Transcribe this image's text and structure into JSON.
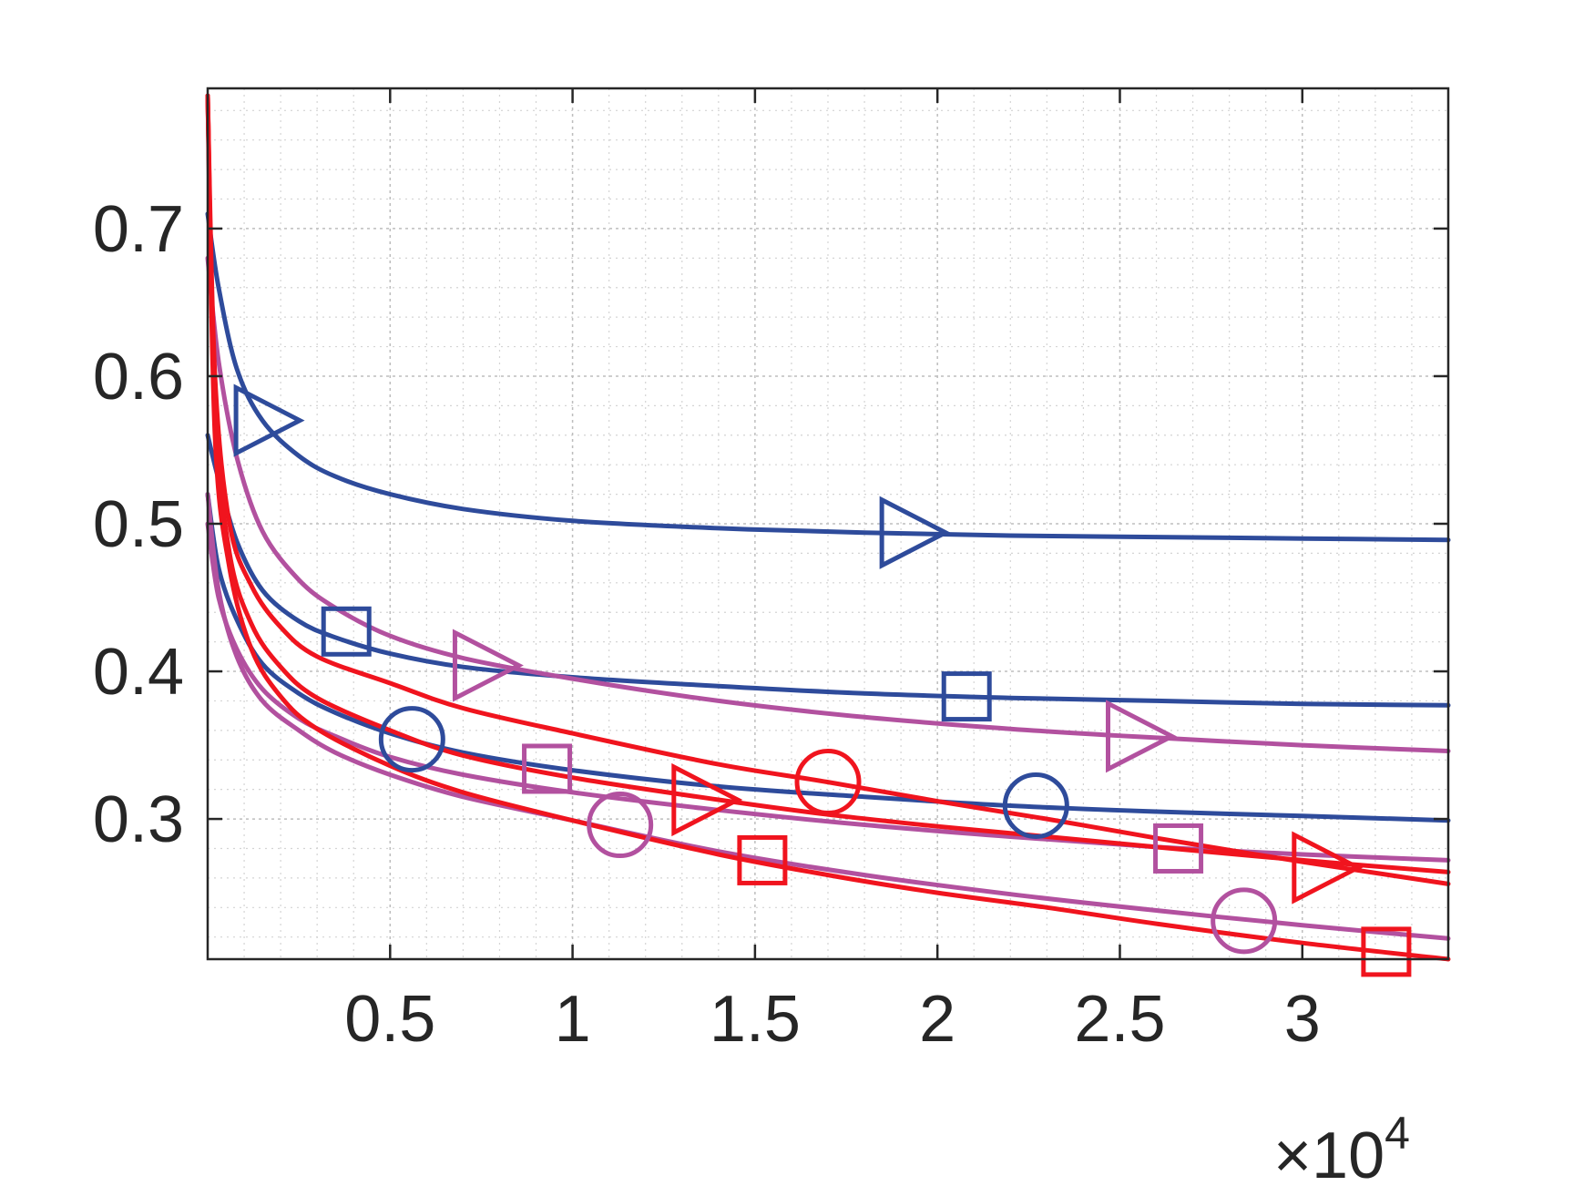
{
  "chart_data": {
    "type": "line",
    "title": "",
    "xlabel": "",
    "ylabel": "",
    "xlim": [
      0,
      34000
    ],
    "ylim": [
      0.205,
      0.795
    ],
    "x_exponent_label": {
      "prefix": "×10",
      "power": "4"
    },
    "x_ticks": [
      {
        "value": 5000,
        "label": "0.5"
      },
      {
        "value": 10000,
        "label": "1"
      },
      {
        "value": 15000,
        "label": "1.5"
      },
      {
        "value": 20000,
        "label": "2"
      },
      {
        "value": 25000,
        "label": "2.5"
      },
      {
        "value": 30000,
        "label": "3"
      }
    ],
    "y_ticks": [
      {
        "value": 0.3,
        "label": "0.3"
      },
      {
        "value": 0.4,
        "label": "0.4"
      },
      {
        "value": 0.5,
        "label": "0.5"
      },
      {
        "value": 0.6,
        "label": "0.6"
      },
      {
        "value": 0.7,
        "label": "0.7"
      }
    ],
    "grid": true,
    "minor_grid": true,
    "legend": "none",
    "series": [
      {
        "color": "#2E4B9B",
        "marker": "triangle-right",
        "x": [
          0,
          300,
          800,
          1500,
          2500,
          3500,
          5000,
          7000,
          10000,
          14000,
          18000,
          22000,
          26000,
          30000,
          34000
        ],
        "y": [
          0.71,
          0.66,
          0.605,
          0.57,
          0.546,
          0.532,
          0.52,
          0.51,
          0.502,
          0.497,
          0.494,
          0.492,
          0.491,
          0.49,
          0.489
        ],
        "markers": [
          [
            1600,
            0.57
          ],
          [
            19300,
            0.494
          ]
        ]
      },
      {
        "color": "#2E4B9B",
        "marker": "square",
        "x": [
          0,
          300,
          800,
          1500,
          2500,
          3500,
          5000,
          7000,
          10000,
          14000,
          18000,
          22000,
          26000,
          30000,
          34000
        ],
        "y": [
          0.56,
          0.53,
          0.488,
          0.455,
          0.434,
          0.423,
          0.412,
          0.403,
          0.396,
          0.39,
          0.385,
          0.382,
          0.38,
          0.378,
          0.377
        ],
        "markers": [
          [
            3800,
            0.427
          ],
          [
            20800,
            0.383
          ]
        ]
      },
      {
        "color": "#2E4B9B",
        "marker": "circle",
        "x": [
          0,
          300,
          800,
          1500,
          2500,
          3500,
          5000,
          7000,
          10000,
          14000,
          18000,
          22000,
          26000,
          30000,
          34000
        ],
        "y": [
          0.52,
          0.47,
          0.435,
          0.405,
          0.385,
          0.372,
          0.358,
          0.345,
          0.333,
          0.322,
          0.315,
          0.309,
          0.305,
          0.302,
          0.299
        ],
        "markers": [
          [
            5600,
            0.354
          ],
          [
            22700,
            0.309
          ]
        ]
      },
      {
        "color": "#B2519F",
        "marker": "triangle-right",
        "x": [
          0,
          300,
          800,
          1500,
          2500,
          3500,
          5000,
          7000,
          10000,
          14000,
          18000,
          22000,
          26000,
          30000,
          34000
        ],
        "y": [
          0.68,
          0.61,
          0.545,
          0.495,
          0.462,
          0.443,
          0.424,
          0.409,
          0.395,
          0.38,
          0.369,
          0.361,
          0.355,
          0.35,
          0.346
        ],
        "markers": [
          [
            7600,
            0.404
          ],
          [
            25500,
            0.356
          ]
        ]
      },
      {
        "color": "#B2519F",
        "marker": "square",
        "x": [
          0,
          300,
          800,
          1500,
          2500,
          3500,
          5000,
          7000,
          10000,
          14000,
          18000,
          22000,
          26000,
          30000,
          34000
        ],
        "y": [
          0.5,
          0.45,
          0.415,
          0.388,
          0.368,
          0.356,
          0.342,
          0.33,
          0.318,
          0.306,
          0.296,
          0.288,
          0.281,
          0.276,
          0.272
        ],
        "markers": [
          [
            9300,
            0.334
          ],
          [
            26600,
            0.28
          ]
        ]
      },
      {
        "color": "#B2519F",
        "marker": "circle",
        "x": [
          0,
          300,
          800,
          1500,
          2500,
          3500,
          5000,
          7000,
          10000,
          14000,
          18000,
          22000,
          26000,
          30000,
          34000
        ],
        "y": [
          0.52,
          0.455,
          0.41,
          0.38,
          0.36,
          0.345,
          0.33,
          0.315,
          0.299,
          0.278,
          0.262,
          0.249,
          0.238,
          0.228,
          0.219
        ],
        "markers": [
          [
            11300,
            0.296
          ],
          [
            28400,
            0.231
          ]
        ]
      },
      {
        "color": "#F0141E",
        "marker": "triangle-right",
        "x": [
          0,
          200,
          600,
          1200,
          2000,
          3000,
          5000,
          7000,
          10000,
          14000,
          17000,
          20000,
          23000,
          26000,
          30000,
          34000
        ],
        "y": [
          0.79,
          0.6,
          0.5,
          0.458,
          0.43,
          0.41,
          0.392,
          0.375,
          0.358,
          0.337,
          0.325,
          0.312,
          0.3,
          0.287,
          0.271,
          0.256
        ],
        "markers": [
          [
            13600,
            0.313
          ],
          [
            30600,
            0.267
          ]
        ]
      },
      {
        "color": "#F0141E",
        "marker": "circle",
        "x": [
          0,
          200,
          600,
          1200,
          2000,
          3000,
          5000,
          7000,
          10000,
          14000,
          17000,
          20000,
          23000,
          26000,
          30000,
          34000
        ],
        "y": [
          0.79,
          0.58,
          0.48,
          0.432,
          0.403,
          0.382,
          0.36,
          0.343,
          0.328,
          0.313,
          0.303,
          0.295,
          0.288,
          0.281,
          0.272,
          0.264
        ],
        "markers": [
          [
            17000,
            0.325
          ]
        ]
      },
      {
        "color": "#F0141E",
        "marker": "square",
        "x": [
          0,
          200,
          600,
          1200,
          2000,
          3000,
          5000,
          7000,
          10000,
          14000,
          17000,
          20000,
          23000,
          26000,
          30000,
          34000
        ],
        "y": [
          0.79,
          0.56,
          0.47,
          0.415,
          0.383,
          0.361,
          0.336,
          0.318,
          0.299,
          0.276,
          0.262,
          0.25,
          0.24,
          0.229,
          0.216,
          0.205
        ],
        "markers": [
          [
            15200,
            0.272
          ],
          [
            32300,
            0.21
          ]
        ]
      }
    ]
  }
}
